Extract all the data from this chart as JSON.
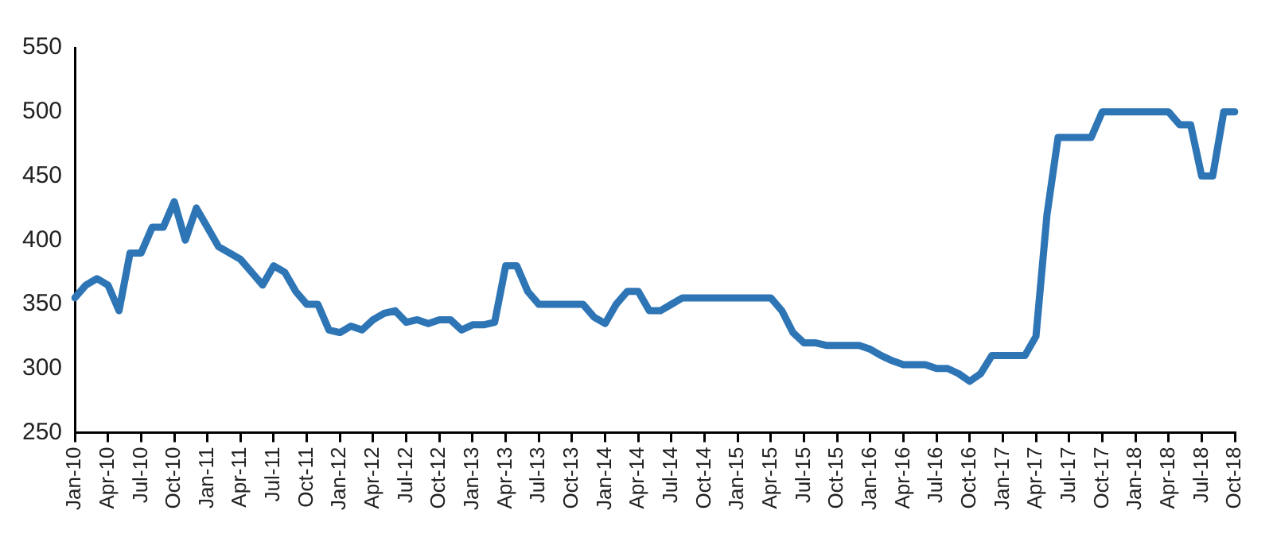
{
  "chart_data": {
    "type": "line",
    "categories": [
      "Jan-10",
      null,
      null,
      "Apr-10",
      null,
      null,
      "Jul-10",
      null,
      null,
      "Oct-10",
      null,
      null,
      "Jan-11",
      null,
      null,
      "Apr-11",
      null,
      null,
      "Jul-11",
      null,
      null,
      "Oct-11",
      null,
      null,
      "Jan-12",
      null,
      null,
      "Apr-12",
      null,
      null,
      "Jul-12",
      null,
      null,
      "Oct-12",
      null,
      null,
      "Jan-13",
      null,
      null,
      "Apr-13",
      null,
      null,
      "Jul-13",
      null,
      null,
      "Oct-13",
      null,
      null,
      "Jan-14",
      null,
      null,
      "Apr-14",
      null,
      null,
      "Jul-14",
      null,
      null,
      "Oct-14",
      null,
      null,
      "Jan-15",
      null,
      null,
      "Apr-15",
      null,
      null,
      "Jul-15",
      null,
      null,
      "Oct-15",
      null,
      null,
      "Jan-16",
      null,
      null,
      "Apr-16",
      null,
      null,
      "Jul-16",
      null,
      null,
      "Oct-16",
      null,
      null,
      "Jan-17",
      null,
      null,
      "Apr-17",
      null,
      null,
      "Jul-17",
      null,
      null,
      "Oct-17",
      null,
      null,
      "Jan-18",
      null,
      null,
      "Apr-18",
      null,
      null,
      "Jul-18",
      null,
      null,
      "Oct-18"
    ],
    "series": [
      {
        "color": "#2e75b6",
        "values": [
          355,
          365,
          370,
          365,
          345,
          390,
          390,
          410,
          410,
          430,
          400,
          425,
          410,
          395,
          390,
          385,
          375,
          365,
          380,
          375,
          360,
          350,
          350,
          330,
          328,
          333,
          330,
          338,
          343,
          345,
          336,
          338,
          335,
          338,
          338,
          330,
          334,
          334,
          336,
          380,
          380,
          360,
          350,
          350,
          350,
          350,
          350,
          340,
          335,
          350,
          360,
          360,
          345,
          345,
          350,
          355,
          355,
          355,
          355,
          355,
          355,
          355,
          355,
          355,
          345,
          328,
          320,
          320,
          318,
          318,
          318,
          318,
          315,
          310,
          306,
          303,
          303,
          303,
          300,
          300,
          296,
          290,
          296,
          310,
          310,
          310,
          310,
          325,
          420,
          480,
          480,
          480,
          480,
          500,
          500,
          500,
          500,
          500,
          500,
          500,
          490,
          490,
          450,
          450,
          500,
          500
        ]
      }
    ],
    "ylim": [
      250,
      550
    ],
    "yticks": [
      250,
      300,
      350,
      400,
      450,
      500,
      550
    ],
    "grid": false,
    "legend": false,
    "marker": "none",
    "line_style": "solid"
  }
}
